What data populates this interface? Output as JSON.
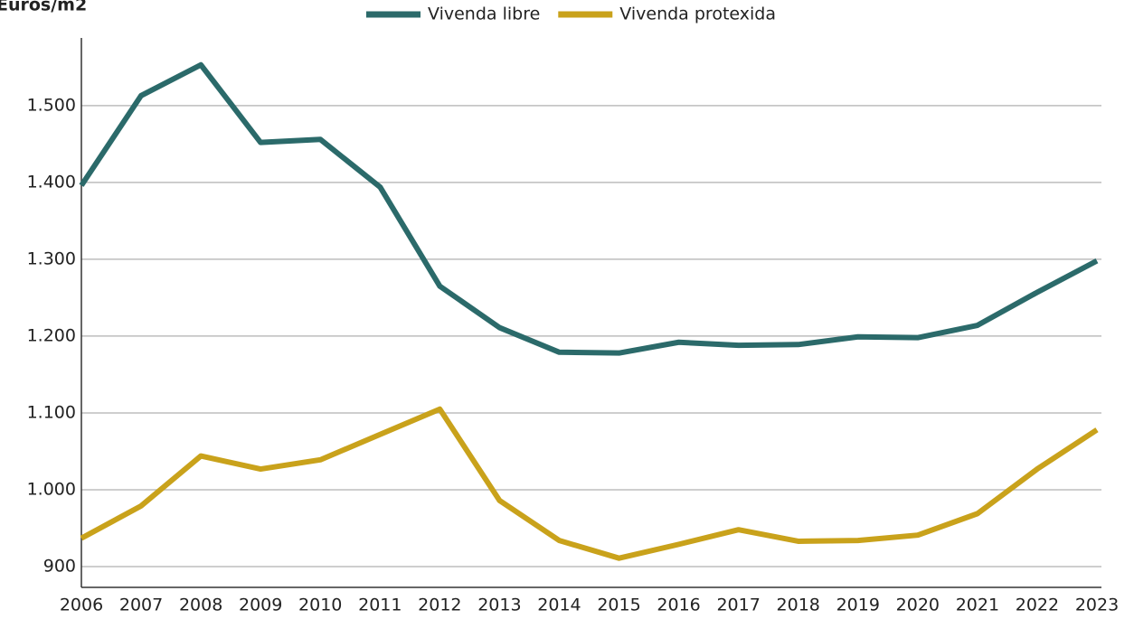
{
  "chart_data": {
    "type": "line",
    "ylabel": "Euros/m2",
    "categories": [
      "2006",
      "2007",
      "2008",
      "2009",
      "2010",
      "2011",
      "2012",
      "2013",
      "2014",
      "2015",
      "2016",
      "2017",
      "2018",
      "2019",
      "2020",
      "2021",
      "2022",
      "2023"
    ],
    "series": [
      {
        "name": "Vivenda libre",
        "color": "#2b6a6a",
        "values": [
          1396,
          1513,
          1553,
          1452,
          1456,
          1394,
          1265,
          1211,
          1179,
          1178,
          1192,
          1188,
          1189,
          1199,
          1198,
          1214,
          1257,
          1298
        ]
      },
      {
        "name": "Vivenda protexida",
        "color": "#c9a21b",
        "values": [
          937,
          979,
          1044,
          1027,
          1039,
          1072,
          1105,
          986,
          934,
          911,
          929,
          948,
          933,
          934,
          941,
          969,
          1027,
          1078
        ]
      }
    ],
    "ylim": [
      873,
      1588
    ],
    "yticks": [
      900,
      {
        "value": 1000,
        "label": "1.000"
      },
      {
        "value": 1100,
        "label": "1.100"
      },
      {
        "value": 1200,
        "label": "1.200"
      },
      {
        "value": 1300,
        "label": "1.300"
      },
      {
        "value": 1400,
        "label": "1.400"
      },
      {
        "value": 1500,
        "label": "1.500"
      }
    ],
    "grid": true,
    "legend": "top"
  }
}
